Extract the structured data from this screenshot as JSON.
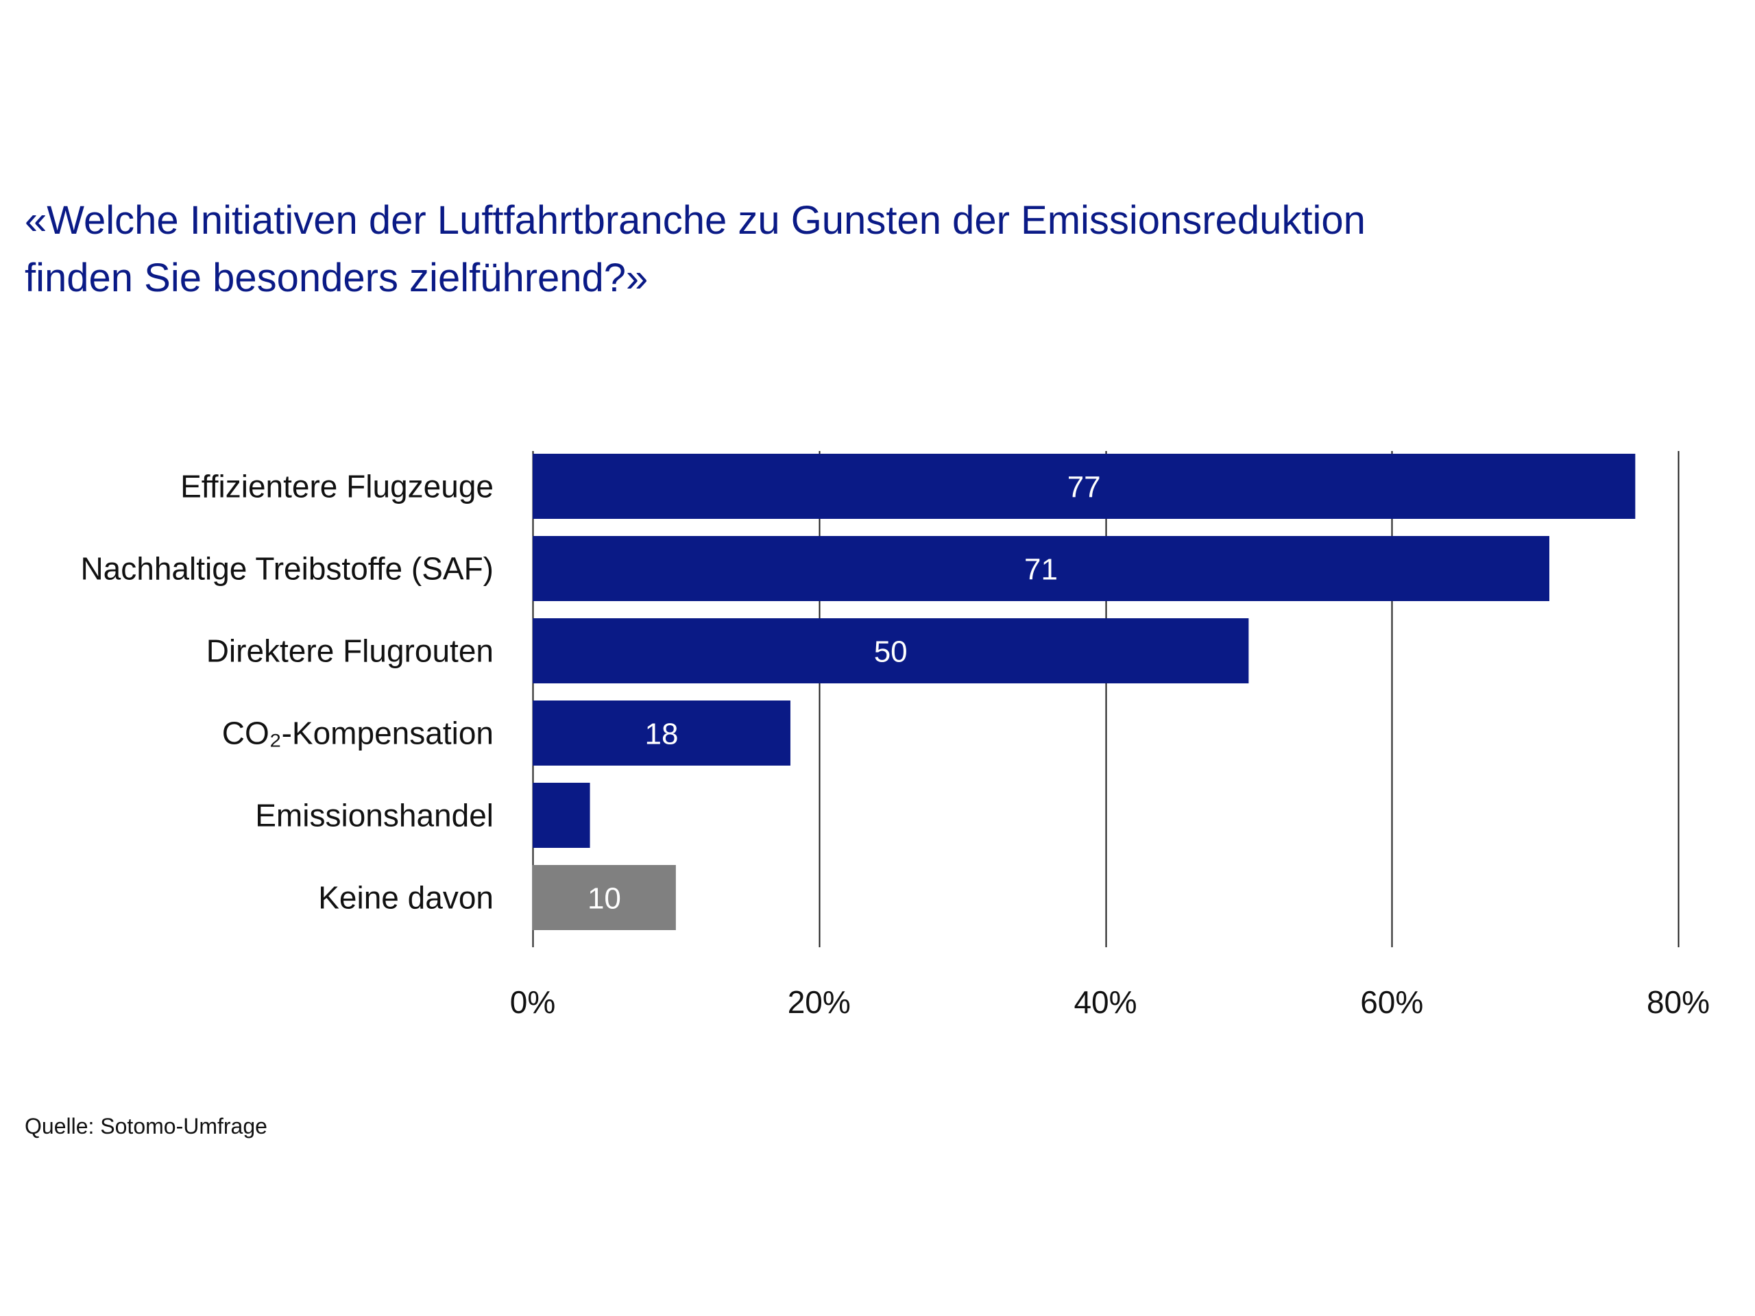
{
  "chart_data": {
    "type": "bar",
    "orientation": "horizontal",
    "title": "«Welche Initiativen der Luftfahrtbranche zu Gunsten der Emissionsreduktion finden Sie besonders zielführend?»",
    "title_lines": [
      "«Welche Initiativen der Luftfahrtbranche zu Gunsten der Emissionsreduktion",
      "finden Sie besonders zielführend?»"
    ],
    "categories": [
      "Effizientere Flugzeuge",
      "Nachhaltige Treibstoffe (SAF)",
      "Direktere Flugrouten",
      "CO₂-Kompensation",
      "Emissionshandel",
      "Keine davon"
    ],
    "values": [
      77,
      71,
      50,
      18,
      4,
      10
    ],
    "value_labels": [
      "77",
      "71",
      "50",
      "18",
      "",
      "10"
    ],
    "bar_colors": [
      "#0a1a86",
      "#0a1a86",
      "#0a1a86",
      "#0a1a86",
      "#0a1a86",
      "#808080"
    ],
    "xlim": [
      0,
      80
    ],
    "x_ticks": [
      0,
      20,
      40,
      60,
      80
    ],
    "x_tick_labels": [
      "0%",
      "20%",
      "40%",
      "60%",
      "80%"
    ],
    "grid": true,
    "legend": "none",
    "source": "Quelle: Sotomo-Umfrage"
  }
}
